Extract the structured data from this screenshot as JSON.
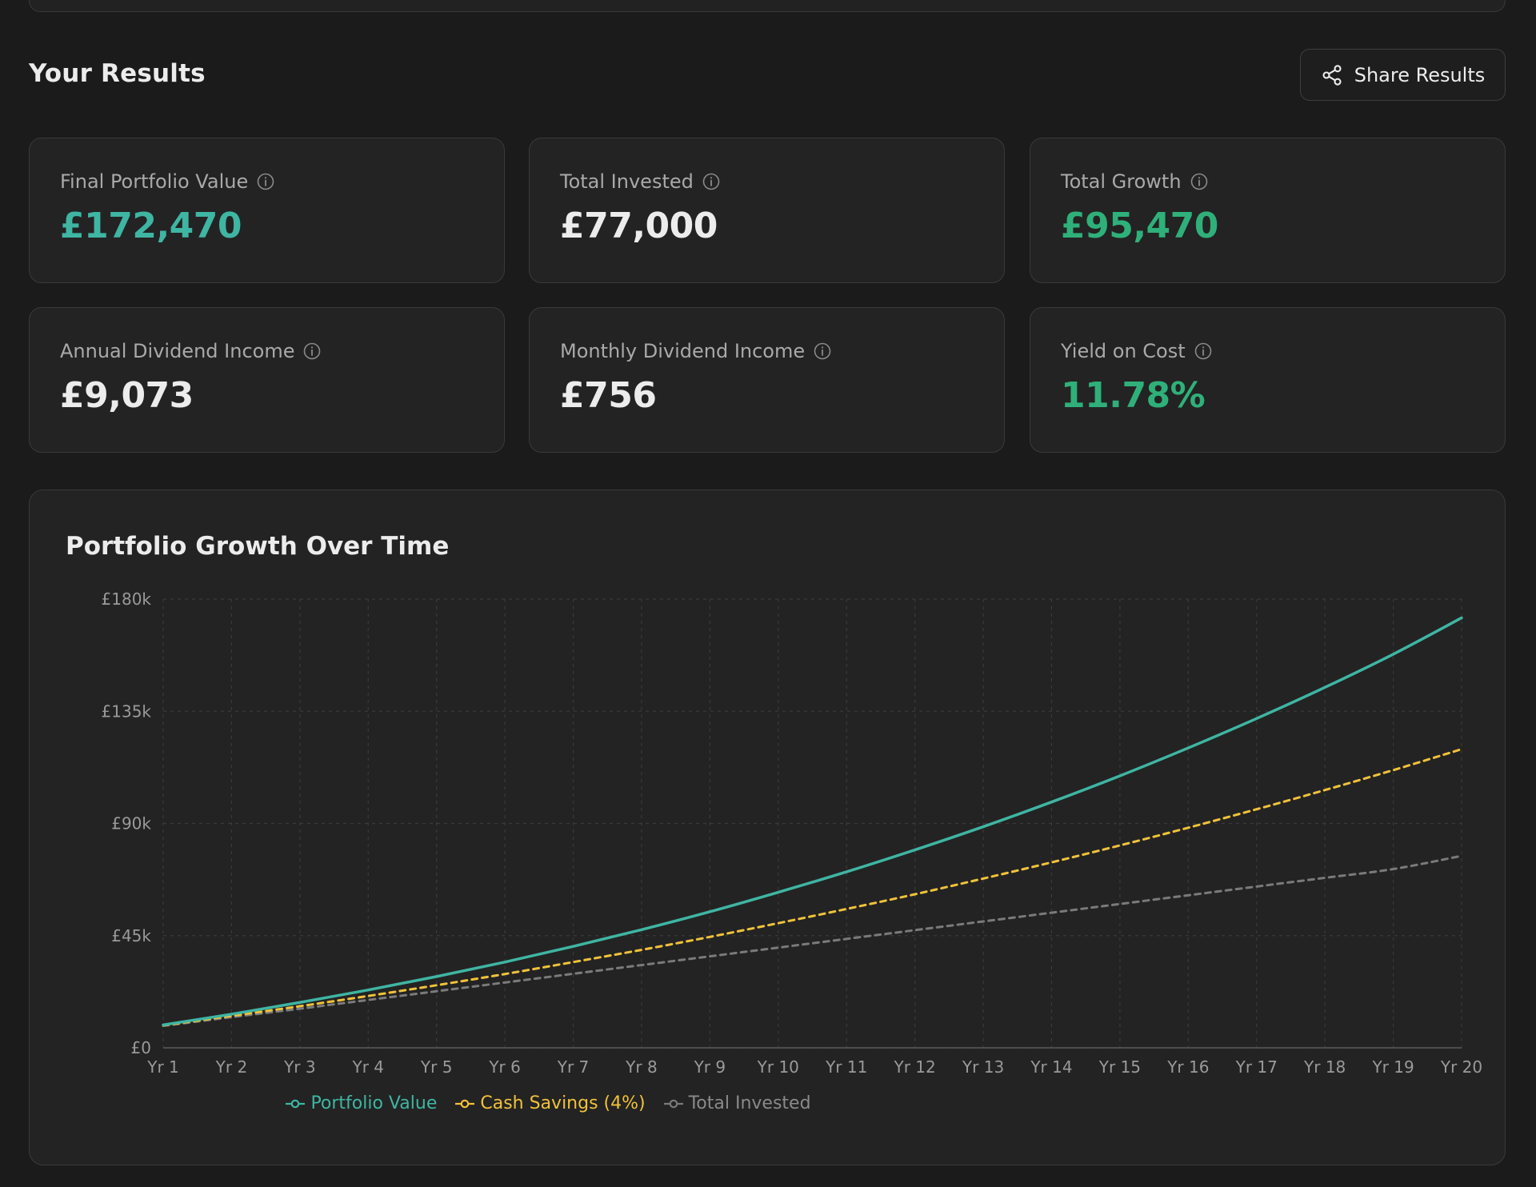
{
  "header": {
    "title": "Your Results",
    "share_label": "Share Results"
  },
  "cards": [
    {
      "label": "Final Portfolio Value",
      "value": "£172,470",
      "color": "#3fb5a3"
    },
    {
      "label": "Total Invested",
      "value": "£77,000",
      "color": "#ececec"
    },
    {
      "label": "Total Growth",
      "value": "£95,470",
      "color": "#2fb07a"
    },
    {
      "label": "Annual Dividend Income",
      "value": "£9,073",
      "color": "#ececec"
    },
    {
      "label": "Monthly Dividend Income",
      "value": "£756",
      "color": "#ececec"
    },
    {
      "label": "Yield on Cost",
      "value": "11.78%",
      "color": "#2fb07a"
    }
  ],
  "chart": {
    "title": "Portfolio Growth Over Time"
  },
  "chart_data": {
    "type": "line",
    "title": "Portfolio Growth Over Time",
    "categories": [
      "Yr 1",
      "Yr 2",
      "Yr 3",
      "Yr 4",
      "Yr 5",
      "Yr 6",
      "Yr 7",
      "Yr 8",
      "Yr 9",
      "Yr 10",
      "Yr 11",
      "Yr 12",
      "Yr 13",
      "Yr 14",
      "Yr 15",
      "Yr 16",
      "Yr 17",
      "Yr 18",
      "Yr 19",
      "Yr 20"
    ],
    "yticks": [
      0,
      45000,
      90000,
      135000,
      180000
    ],
    "ytick_labels": [
      "£0",
      "£45k",
      "£90k",
      "£135k",
      "£180k"
    ],
    "ylim": [
      0,
      180000
    ],
    "grid": true,
    "legend_position": "bottom-center",
    "series": [
      {
        "name": "Portfolio Value",
        "color": "#3fb5a3",
        "dash": "solid",
        "values": [
          9200,
          13500,
          18200,
          23200,
          28600,
          34400,
          40700,
          47400,
          54600,
          62400,
          70600,
          79400,
          88700,
          98600,
          109100,
          120300,
          132100,
          144600,
          157900,
          172470
        ]
      },
      {
        "name": "Cash Savings (4%)",
        "color": "#f0c23a",
        "dash": "dashed",
        "values": [
          9000,
          12800,
          16700,
          20800,
          25100,
          29600,
          34400,
          39300,
          44500,
          50000,
          55700,
          61600,
          67900,
          74400,
          81200,
          88300,
          95700,
          103400,
          111400,
          119800
        ]
      },
      {
        "name": "Total Invested",
        "color": "#7a7a7a",
        "dash": "dashed",
        "values": [
          8800,
          12300,
          15700,
          19200,
          22700,
          26200,
          29700,
          33200,
          36700,
          40200,
          43700,
          47200,
          50700,
          54200,
          57700,
          61200,
          64700,
          68200,
          71700,
          77000
        ]
      }
    ]
  }
}
